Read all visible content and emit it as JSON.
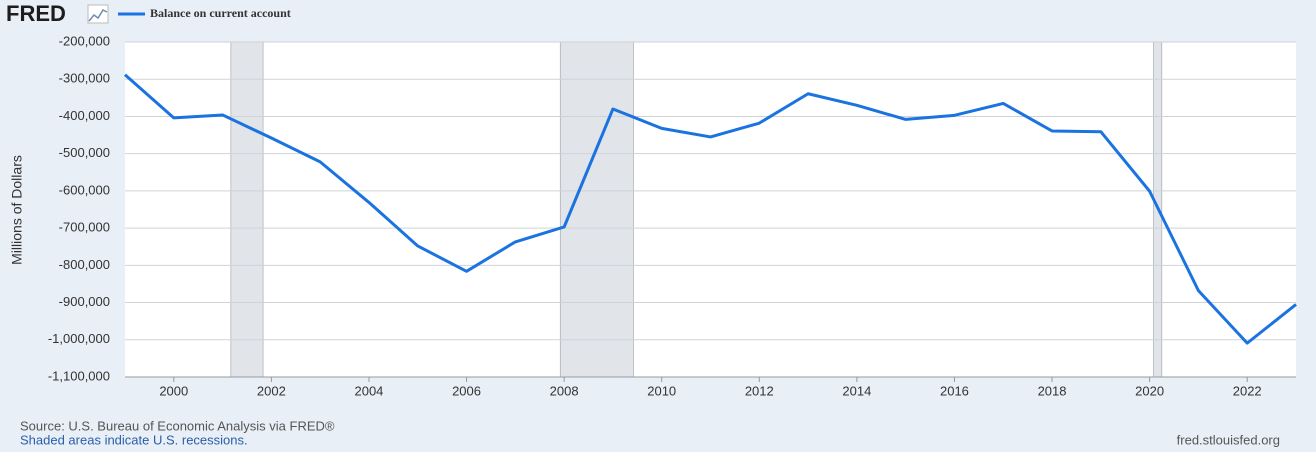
{
  "logo": "FRED",
  "chart_data": {
    "type": "line",
    "y_label": "Millions of Dollars",
    "source": "Source: U.S. Bureau of Economic Analysis via FRED®",
    "note": "Shaded areas indicate U.S. recessions.",
    "credit": "fred.stlouisfed.org",
    "x": [
      1999,
      2000,
      2001,
      2002,
      2003,
      2004,
      2005,
      2006,
      2007,
      2008,
      2009,
      2010,
      2011,
      2012,
      2013,
      2014,
      2015,
      2016,
      2017,
      2018,
      2019,
      2020,
      2021,
      2022,
      2023
    ],
    "series": [
      {
        "name": "Balance on current account",
        "color": "#1a73e0",
        "values": [
          -288000,
          -404000,
          -396000,
          -458000,
          -522000,
          -631000,
          -748000,
          -816000,
          -737000,
          -697000,
          -380000,
          -432000,
          -455000,
          -418000,
          -339000,
          -370000,
          -408000,
          -397000,
          -365000,
          -439000,
          -441000,
          -601000,
          -868000,
          -1009000,
          -905000
        ]
      }
    ],
    "recessions": [
      [
        2001.17,
        2001.83
      ],
      [
        2007.92,
        2009.42
      ],
      [
        2020.08,
        2020.25
      ]
    ],
    "recession_color": "#e1e5ea",
    "xlim": [
      1999,
      2023
    ],
    "xticks": [
      2000,
      2002,
      2004,
      2006,
      2008,
      2010,
      2012,
      2014,
      2016,
      2018,
      2020,
      2022
    ],
    "ylim": [
      -1100000,
      -200000
    ],
    "yticks": [
      {
        "value": -1100000,
        "label": "-1,100,000"
      },
      {
        "value": -1000000,
        "label": "-1,000,000"
      },
      {
        "value": -900000,
        "label": "-900,000"
      },
      {
        "value": -800000,
        "label": "-800,000"
      },
      {
        "value": -700000,
        "label": "-700,000"
      },
      {
        "value": -600000,
        "label": "-600,000"
      },
      {
        "value": -500000,
        "label": "-500,000"
      },
      {
        "value": -400000,
        "label": "-400,000"
      },
      {
        "value": -300000,
        "label": "-300,000"
      },
      {
        "value": -200000,
        "label": "-200,000"
      }
    ],
    "grid": true
  }
}
